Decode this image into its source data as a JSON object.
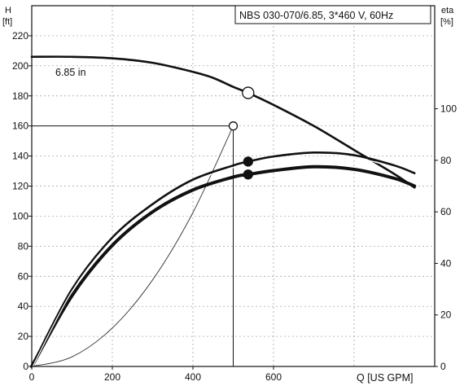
{
  "chart_data": {
    "type": "line",
    "title": "NBS 030-070/6.85, 3*460 V, 60Hz",
    "y_left_label_line1": "H",
    "y_left_label_line2": "[ft]",
    "y_right_label_line1": "eta",
    "y_right_label_line2": "[%]",
    "xlabel": "Q [US GPM]",
    "xlim": [
      0,
      1000
    ],
    "ylim_left": [
      0,
      240
    ],
    "ylim_right": [
      0,
      140
    ],
    "x_ticks": [
      {
        "value": 0,
        "label": "0"
      },
      {
        "value": 200,
        "label": "200"
      },
      {
        "value": 400,
        "label": "400"
      },
      {
        "value": 600,
        "label": "600"
      }
    ],
    "y_left_ticks": [
      {
        "value": 0,
        "label": "0"
      },
      {
        "value": 20,
        "label": "20"
      },
      {
        "value": 40,
        "label": "40"
      },
      {
        "value": 60,
        "label": "60"
      },
      {
        "value": 80,
        "label": "80"
      },
      {
        "value": 100,
        "label": "100"
      },
      {
        "value": 120,
        "label": "120"
      },
      {
        "value": 140,
        "label": "140"
      },
      {
        "value": 160,
        "label": "160"
      },
      {
        "value": 180,
        "label": "180"
      },
      {
        "value": 200,
        "label": "200"
      },
      {
        "value": 220,
        "label": "220"
      }
    ],
    "y_right_ticks": [
      {
        "value": 0,
        "label": "0"
      },
      {
        "value": 20,
        "label": "20"
      },
      {
        "value": 40,
        "label": "40"
      },
      {
        "value": 60,
        "label": "60"
      },
      {
        "value": 80,
        "label": "80"
      },
      {
        "value": 100,
        "label": "100"
      }
    ],
    "grid": true,
    "series": [
      {
        "name": "6.85 in",
        "axis": "left",
        "stroke": "#111111",
        "width": 2.6,
        "x": [
          0,
          100,
          200,
          300,
          400,
          450,
          500,
          537,
          600,
          700,
          800,
          900,
          950
        ],
        "y": [
          206,
          206,
          205,
          202,
          196,
          192,
          186,
          182,
          174,
          160,
          144,
          128,
          119
        ]
      },
      {
        "axis": "left",
        "stroke": "#333333",
        "width": 0.9,
        "x": [
          0,
          100,
          200,
          300,
          400,
          500
        ],
        "y": [
          0,
          6.4,
          25.6,
          57.6,
          102.4,
          160
        ]
      },
      {
        "axis": "right",
        "stroke": "#111111",
        "width": 2.6,
        "x": [
          0,
          100,
          200,
          300,
          400,
          500,
          537,
          600,
          700,
          800,
          900,
          950
        ],
        "y": [
          0,
          30,
          50,
          63,
          72.5,
          78,
          79.5,
          81.5,
          83,
          82,
          78,
          75
        ]
      },
      {
        "axis": "right",
        "stroke": "#111111",
        "width": 4.0,
        "x": [
          0,
          100,
          200,
          300,
          400,
          500,
          537,
          600,
          700,
          800,
          900,
          950
        ],
        "y": [
          0,
          27.5,
          47,
          60,
          68.5,
          73.5,
          74.5,
          76,
          77.5,
          76.5,
          73,
          70
        ]
      }
    ],
    "reference_lines": [
      {
        "axis": "left",
        "x": [
          0,
          500
        ],
        "y": [
          160,
          160
        ]
      },
      {
        "axis": "left",
        "x": [
          500,
          500
        ],
        "y": [
          160,
          0
        ]
      }
    ],
    "markers": [
      {
        "axis": "left",
        "x": 537,
        "y": 182,
        "style": "open"
      },
      {
        "axis": "left",
        "x": 500,
        "y": 160,
        "style": "open"
      },
      {
        "axis": "right",
        "x": 537,
        "y": 79.5,
        "style": "filled"
      },
      {
        "axis": "right",
        "x": 537,
        "y": 74.5,
        "style": "filled"
      }
    ]
  }
}
